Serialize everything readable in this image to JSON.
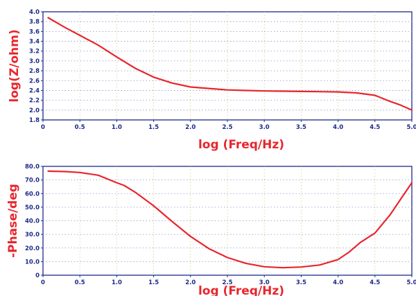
{
  "chart_data": [
    {
      "type": "line",
      "xlabel": "log (Freq/Hz)",
      "ylabel": "log(Z/ohm)",
      "xlim": [
        0,
        5
      ],
      "ylim": [
        1.8,
        4.0
      ],
      "x_ticks": [
        "0",
        "0.5",
        "1.0",
        "1.5",
        "2.0",
        "2.5",
        "3.0",
        "3.5",
        "4.0",
        "4.5",
        "5.0"
      ],
      "y_ticks": [
        "1.8",
        "2.0",
        "2.2",
        "2.4",
        "2.6",
        "2.8",
        "3.0",
        "3.2",
        "3.4",
        "3.6",
        "3.8",
        "4.0"
      ],
      "grid": true,
      "line_color": "#e8262d",
      "series": [
        {
          "x": [
            0.07,
            0.3,
            0.5,
            0.75,
            1.0,
            1.25,
            1.5,
            1.75,
            2.0,
            2.25,
            2.5,
            2.75,
            3.0,
            3.25,
            3.5,
            3.75,
            4.0,
            4.25,
            4.5,
            4.7,
            4.85,
            5.0
          ],
          "y": [
            3.88,
            3.68,
            3.52,
            3.32,
            3.08,
            2.85,
            2.67,
            2.55,
            2.47,
            2.44,
            2.41,
            2.4,
            2.39,
            2.385,
            2.38,
            2.375,
            2.37,
            2.35,
            2.3,
            2.18,
            2.1,
            2.0
          ]
        }
      ]
    },
    {
      "type": "line",
      "xlabel": "log (Freq/Hz)",
      "ylabel": "-Phase/deg",
      "xlim": [
        0,
        5
      ],
      "ylim": [
        0,
        80
      ],
      "x_ticks": [
        "0",
        "0.5",
        "1.0",
        "1.5",
        "2.0",
        "2.5",
        "3.0",
        "3.5",
        "4.0",
        "4.5",
        "5.0"
      ],
      "y_ticks": [
        "0",
        "10.0",
        "20.0",
        "30.0",
        "40.0",
        "50.0",
        "60.0",
        "70.0",
        "80.0"
      ],
      "grid": true,
      "line_color": "#e8262d",
      "series": [
        {
          "x": [
            0.07,
            0.3,
            0.5,
            0.75,
            1.0,
            1.1,
            1.25,
            1.5,
            1.75,
            2.0,
            2.25,
            2.5,
            2.75,
            3.0,
            3.25,
            3.5,
            3.75,
            4.0,
            4.15,
            4.3,
            4.5,
            4.7,
            4.85,
            5.0
          ],
          "y": [
            76.5,
            76.2,
            75.5,
            73.5,
            68.0,
            66.0,
            61.0,
            51.0,
            39.5,
            28.5,
            19.5,
            13.0,
            8.7,
            6.2,
            5.5,
            6.0,
            7.5,
            11.5,
            17.0,
            24.0,
            31.0,
            44.0,
            56.0,
            68.0
          ]
        }
      ]
    }
  ]
}
